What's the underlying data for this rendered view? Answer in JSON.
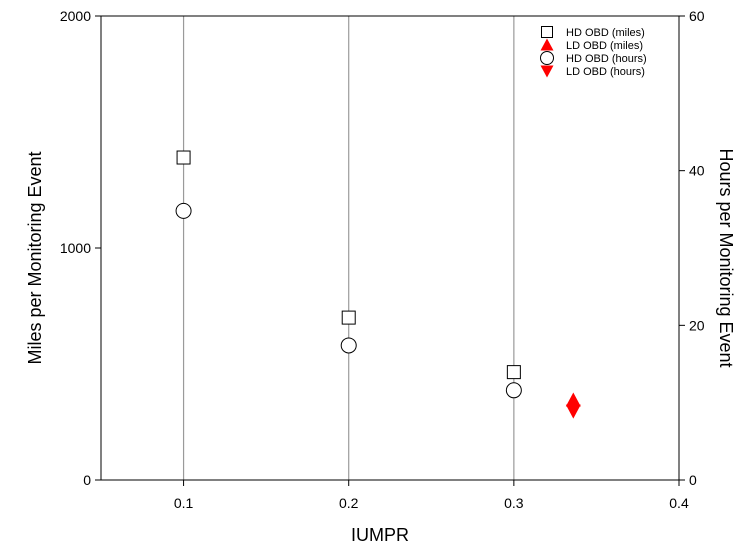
{
  "chart_data": {
    "type": "scatter",
    "title": "",
    "xlabel": "IUMPR",
    "ylabel_left": "Miles per Monitoring Event",
    "ylabel_right": "Hours per Monitoring Event",
    "xlim": [
      0.05,
      0.4
    ],
    "ylim_left": [
      0,
      2000
    ],
    "ylim_right": [
      0,
      60
    ],
    "x_ticks": [
      0.1,
      0.2,
      0.3,
      0.4
    ],
    "x_tick_labels": [
      "0.1",
      "0.2",
      "0.3",
      "0.4"
    ],
    "y_left_ticks": [
      0,
      1000,
      2000
    ],
    "y_left_tick_labels": [
      "0",
      "1000",
      "2000"
    ],
    "y_right_ticks": [
      0,
      20,
      40,
      60
    ],
    "y_right_tick_labels": [
      "0",
      "20",
      "40",
      "60"
    ],
    "vertical_gridlines_at": [
      0.1,
      0.2,
      0.3
    ],
    "legend_position": "top-right",
    "series": [
      {
        "name": "HD OBD (miles)",
        "axis": "left",
        "marker": "square-open",
        "color": "#000000",
        "x": [
          0.1,
          0.2,
          0.3
        ],
        "y": [
          1390,
          700,
          465
        ]
      },
      {
        "name": "LD OBD  (miles)",
        "axis": "left",
        "marker": "triangle-up-filled",
        "color": "#ff0000",
        "x": [
          0.336
        ],
        "y": [
          345
        ]
      },
      {
        "name": "HD OBD (hours)",
        "axis": "right",
        "marker": "circle-open",
        "color": "#000000",
        "x": [
          0.1,
          0.2,
          0.3
        ],
        "y": [
          34.8,
          17.4,
          11.6
        ]
      },
      {
        "name": "LD OBD  (hours)",
        "axis": "right",
        "marker": "triangle-down-filled",
        "color": "#ff0000",
        "x": [
          0.336
        ],
        "y": [
          8.9
        ]
      }
    ]
  }
}
